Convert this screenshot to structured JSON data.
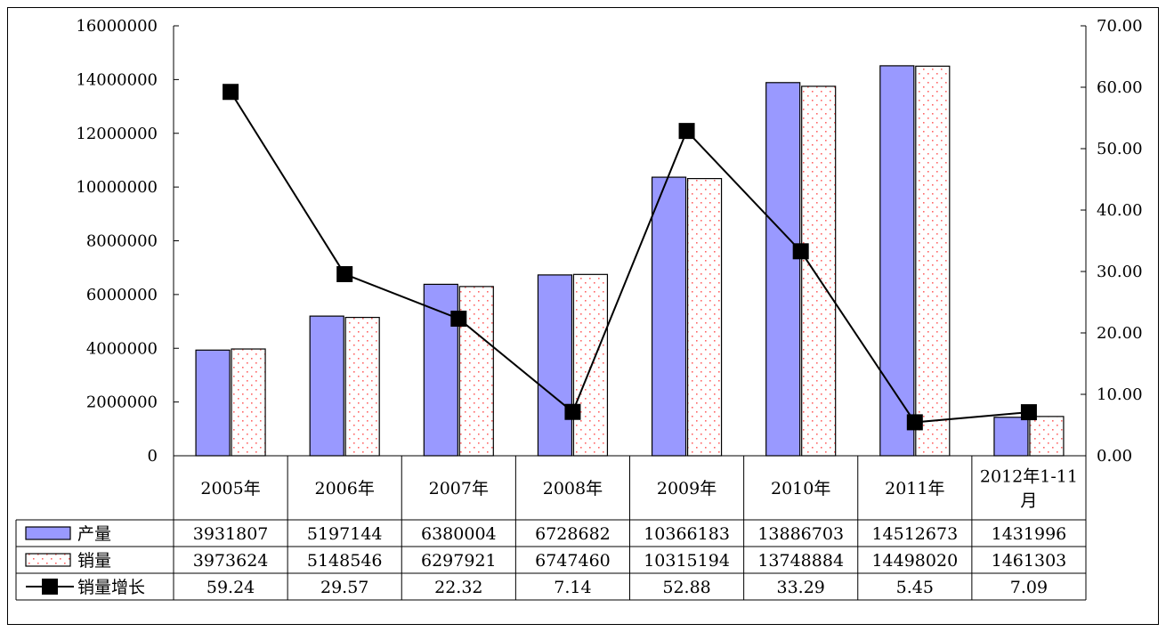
{
  "chart_data": {
    "type": "bar",
    "categories": [
      "2005年",
      "2006年",
      "2007年",
      "2008年",
      "2009年",
      "2010年",
      "2011年",
      "2012年1-11月"
    ],
    "category_lines": [
      [
        "2005年"
      ],
      [
        "2006年"
      ],
      [
        "2007年"
      ],
      [
        "2008年"
      ],
      [
        "2009年"
      ],
      [
        "2010年"
      ],
      [
        "2011年"
      ],
      [
        "2012年1-11",
        "月"
      ]
    ],
    "series": [
      {
        "name": "产量",
        "kind": "bar",
        "axis": "left",
        "color": "#9999ff",
        "pattern": "solid",
        "values": [
          3931807,
          5197144,
          6380004,
          6728682,
          10366183,
          13886703,
          14512673,
          1431996
        ],
        "table_labels": [
          "3931807",
          "5197144",
          "6380004",
          "6728682",
          "10366183",
          "13886703",
          "14512673",
          "1431996"
        ]
      },
      {
        "name": "销量",
        "kind": "bar",
        "axis": "left",
        "color": "#ffffff",
        "pattern": "dotted",
        "dot_color": "#ff6666",
        "values": [
          3973624,
          5148546,
          6297921,
          6747460,
          10315194,
          13748884,
          14498020,
          1461303
        ],
        "table_labels": [
          "3973624",
          "5148546",
          "6297921",
          "6747460",
          "10315194",
          "13748884",
          "14498020",
          "1461303"
        ]
      },
      {
        "name": "销量增长",
        "kind": "line",
        "axis": "right",
        "color": "#000000",
        "marker": "square",
        "values": [
          59.24,
          29.57,
          22.32,
          7.14,
          52.88,
          33.29,
          5.45,
          7.09
        ],
        "table_labels": [
          "59.24",
          "29.57",
          "22.32",
          "7.14",
          "52.88",
          "33.29",
          "5.45",
          "7.09"
        ]
      }
    ],
    "y_left": {
      "range": [
        0,
        16000000
      ],
      "ticks": [
        {
          "v": 0,
          "label": "0"
        },
        {
          "v": 2000000,
          "label": "2000000"
        },
        {
          "v": 4000000,
          "label": "4000000"
        },
        {
          "v": 6000000,
          "label": "6000000"
        },
        {
          "v": 8000000,
          "label": "8000000"
        },
        {
          "v": 10000000,
          "label": "10000000"
        },
        {
          "v": 12000000,
          "label": "12000000"
        },
        {
          "v": 14000000,
          "label": "14000000"
        },
        {
          "v": 16000000,
          "label": "16000000"
        }
      ]
    },
    "y_right": {
      "range": [
        0,
        70
      ],
      "ticks": [
        {
          "v": 0,
          "label": "0.00"
        },
        {
          "v": 10,
          "label": "10.00"
        },
        {
          "v": 20,
          "label": "20.00"
        },
        {
          "v": 30,
          "label": "30.00"
        },
        {
          "v": 40,
          "label": "40.00"
        },
        {
          "v": 50,
          "label": "50.00"
        },
        {
          "v": 60,
          "label": "60.00"
        },
        {
          "v": 70,
          "label": "70.00"
        }
      ]
    },
    "grid": false,
    "legend": "data-table"
  }
}
